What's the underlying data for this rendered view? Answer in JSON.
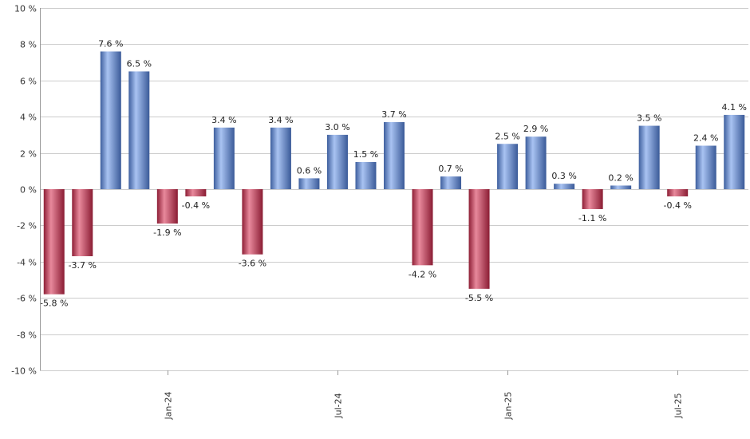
{
  "colors": {
    "positive": "#6f93d8",
    "negative": "#c23a55"
  },
  "chart_data": {
    "type": "bar",
    "title": "",
    "xlabel": "",
    "ylabel": "",
    "ylim": [
      -10,
      10
    ],
    "y_ticks": [
      10,
      8,
      6,
      4,
      2,
      0,
      -2,
      -4,
      -6,
      -8,
      -10
    ],
    "y_tick_labels": [
      "10 %",
      "8 %",
      "6 %",
      "4 %",
      "2 %",
      "0 %",
      "-2 %",
      "-4 %",
      "-6 %",
      "-8 %",
      "-10 %"
    ],
    "grid": true,
    "x_tick_labels": [
      {
        "label": "Jan-24",
        "index": 4
      },
      {
        "label": "Jul-24",
        "index": 10
      },
      {
        "label": "Jan-25",
        "index": 16
      },
      {
        "label": "Jul-25",
        "index": 22
      }
    ],
    "values": [
      -5.8,
      -3.7,
      7.6,
      6.5,
      -1.9,
      -0.4,
      3.4,
      -3.6,
      3.4,
      0.6,
      3.0,
      1.5,
      3.7,
      -4.2,
      0.7,
      -5.5,
      2.5,
      2.9,
      0.3,
      -1.1,
      0.2,
      3.5,
      -0.4,
      2.4,
      4.1
    ],
    "value_labels": [
      "-5.8 %",
      "-3.7 %",
      "7.6 %",
      "6.5 %",
      "-1.9 %",
      "-0.4 %",
      "3.4 %",
      "-3.6 %",
      "3.4 %",
      "0.6 %",
      "3.0 %",
      "1.5 %",
      "3.7 %",
      "-4.2 %",
      "0.7 %",
      "-5.5 %",
      "2.5 %",
      "2.9 %",
      "0.3 %",
      "-1.1 %",
      "0.2 %",
      "3.5 %",
      "-0.4 %",
      "2.4 %",
      "4.1 %"
    ]
  }
}
